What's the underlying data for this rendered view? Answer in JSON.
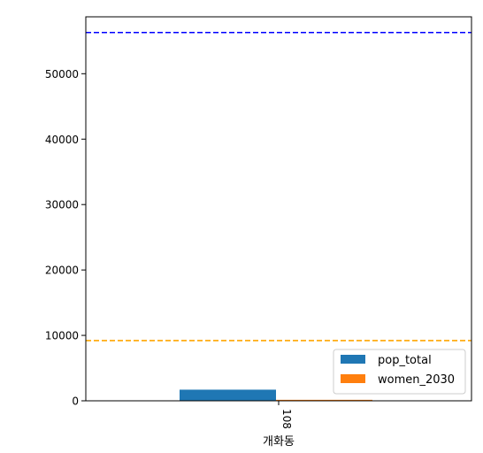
{
  "chart_data": {
    "type": "bar",
    "categories": [
      "108\n개화동"
    ],
    "category_tick": "108",
    "xlabel": "개화동",
    "ylabel": "",
    "title": "",
    "ylim": [
      0,
      58700
    ],
    "yticks": [
      0,
      10000,
      20000,
      30000,
      40000,
      50000
    ],
    "series": [
      {
        "name": "pop_total",
        "values": [
          1700
        ],
        "color": "#1f77b4"
      },
      {
        "name": "women_2030",
        "values": [
          150
        ],
        "color": "#ff7f0e"
      }
    ],
    "reference_lines": [
      {
        "value": 56300,
        "color": "#0000ff",
        "style": "dashed"
      },
      {
        "value": 9200,
        "color": "#ffa500",
        "style": "dashed"
      }
    ],
    "legend": {
      "position": "lower-right",
      "entries": [
        "pop_total",
        "women_2030"
      ]
    },
    "grid": false
  }
}
